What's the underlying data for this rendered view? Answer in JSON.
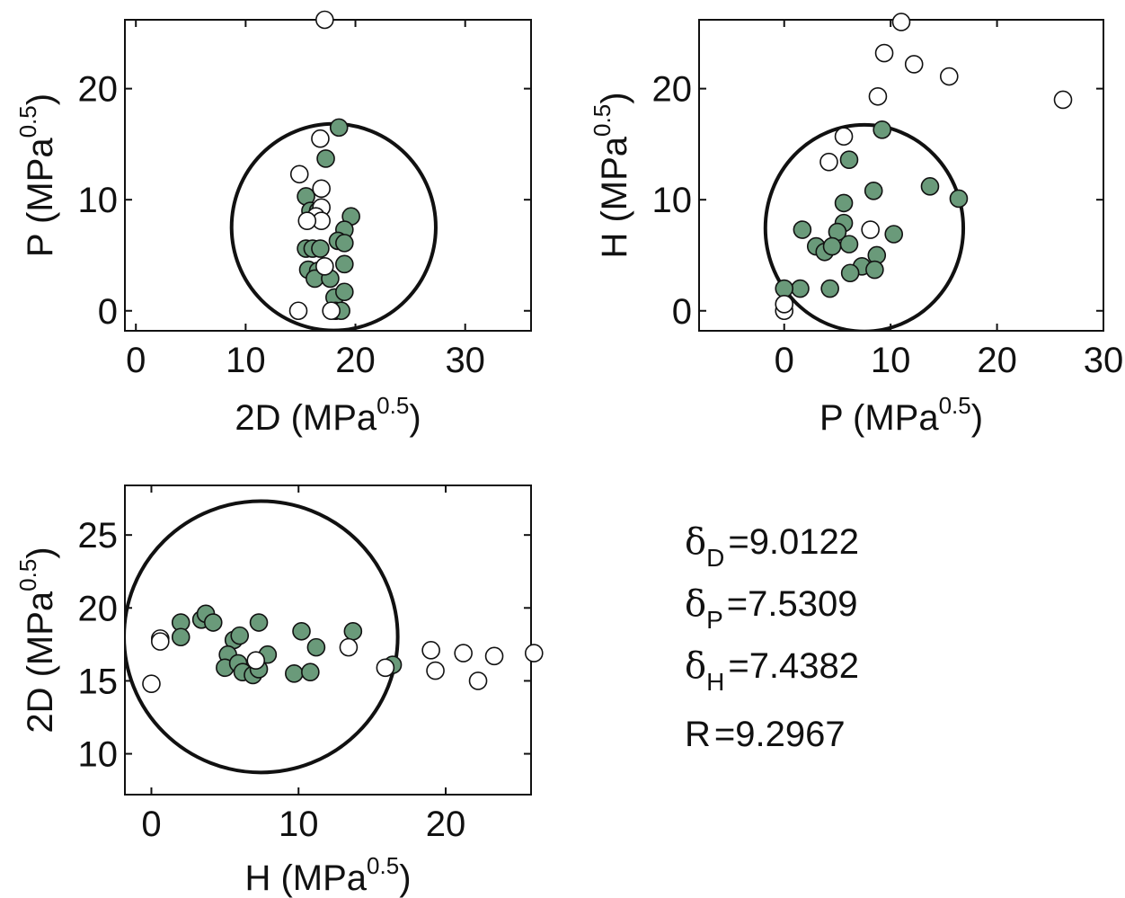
{
  "colors": {
    "inside_fill": "#6a9a7a",
    "outside_fill": "#ffffff",
    "stroke": "#111111",
    "sphere": "#111111"
  },
  "chart_data": [
    {
      "type": "scatter",
      "xlabel": {
        "text": "2D (MPa",
        "sup": "0.5",
        "close": ")"
      },
      "ylabel": {
        "text": "P (MPa",
        "sup": "0.5",
        "close": ")"
      },
      "xlim": [
        -1,
        36
      ],
      "ylim": [
        -1.8,
        26.2
      ],
      "xticks": [
        "0",
        "10",
        "20",
        "30"
      ],
      "yticks": [
        "0",
        "10",
        "20"
      ],
      "circle": {
        "cx": 18.02,
        "cy": 7.53,
        "r": 9.3
      },
      "series": [
        {
          "kind": "inside",
          "points": [
            [
              18.5,
              16.5
            ],
            [
              17.3,
              13.7
            ],
            [
              15.5,
              10.3
            ],
            [
              15.9,
              9.0
            ],
            [
              16.6,
              9.0
            ],
            [
              19.6,
              8.5
            ],
            [
              19.0,
              7.3
            ],
            [
              18.4,
              6.3
            ],
            [
              19.0,
              6.1
            ],
            [
              15.5,
              5.6
            ],
            [
              16.1,
              5.6
            ],
            [
              16.8,
              5.6
            ],
            [
              15.7,
              3.7
            ],
            [
              16.6,
              3.6
            ],
            [
              19.0,
              4.2
            ],
            [
              16.3,
              2.9
            ],
            [
              17.7,
              2.9
            ],
            [
              18.1,
              1.2
            ],
            [
              19.0,
              1.7
            ],
            [
              18.2,
              0.0
            ],
            [
              18.7,
              0.0
            ]
          ]
        },
        {
          "kind": "outside",
          "points": [
            [
              17.2,
              26.2
            ],
            [
              16.8,
              15.5
            ],
            [
              14.9,
              12.3
            ],
            [
              16.9,
              11.0
            ],
            [
              16.9,
              9.3
            ],
            [
              16.4,
              8.5
            ],
            [
              16.9,
              8.1
            ],
            [
              15.6,
              8.1
            ],
            [
              17.2,
              4.0
            ],
            [
              14.8,
              0.0
            ],
            [
              17.8,
              0.0
            ]
          ]
        }
      ]
    },
    {
      "type": "scatter",
      "xlabel": {
        "text": "P (MPa",
        "sup": "0.5",
        "close": ")"
      },
      "ylabel": {
        "text": "H (MPa",
        "sup": "0.5",
        "close": ")"
      },
      "xlim": [
        -8,
        30
      ],
      "ylim": [
        -1.8,
        26.2
      ],
      "xticks": [
        "0",
        "10",
        "20",
        "30"
      ],
      "yticks": [
        "0",
        "10",
        "20"
      ],
      "circle": {
        "cx": 7.53,
        "cy": 7.44,
        "r": 9.3
      },
      "series": [
        {
          "kind": "inside",
          "points": [
            [
              9.2,
              16.3
            ],
            [
              13.7,
              11.2
            ],
            [
              16.4,
              10.1
            ],
            [
              8.4,
              10.8
            ],
            [
              5.6,
              9.7
            ],
            [
              1.7,
              7.3
            ],
            [
              5.6,
              7.9
            ],
            [
              5.0,
              7.1
            ],
            [
              10.3,
              6.9
            ],
            [
              6.1,
              6.0
            ],
            [
              3.0,
              5.8
            ],
            [
              3.8,
              5.3
            ],
            [
              4.5,
              5.8
            ],
            [
              8.7,
              5.0
            ],
            [
              6.1,
              13.6
            ],
            [
              7.3,
              4.0
            ],
            [
              8.5,
              3.7
            ],
            [
              6.2,
              3.4
            ],
            [
              1.5,
              2.0
            ],
            [
              4.3,
              2.0
            ],
            [
              0.0,
              2.0
            ]
          ]
        },
        {
          "kind": "outside",
          "points": [
            [
              11.0,
              26.0
            ],
            [
              9.4,
              23.2
            ],
            [
              12.2,
              22.2
            ],
            [
              15.5,
              21.1
            ],
            [
              26.2,
              19.0
            ],
            [
              8.8,
              19.3
            ],
            [
              5.6,
              15.7
            ],
            [
              4.2,
              13.4
            ],
            [
              8.1,
              7.3
            ],
            [
              0.0,
              0.0
            ],
            [
              0.0,
              0.6
            ]
          ]
        }
      ]
    },
    {
      "type": "scatter",
      "xlabel": {
        "text": "H (MPa",
        "sup": "0.5",
        "close": ")"
      },
      "ylabel": {
        "text": "2D (MPa",
        "sup": "0.5",
        "close": ")"
      },
      "xlim": [
        -1.8,
        25.8
      ],
      "ylim": [
        7.2,
        28.4
      ],
      "xticks": [
        "0",
        "10",
        "20"
      ],
      "yticks": [
        "10",
        "15",
        "20",
        "25"
      ],
      "circle": {
        "cx": 7.44,
        "cy": 18.02,
        "r": 9.3
      },
      "series": [
        {
          "kind": "inside",
          "points": [
            [
              2.0,
              19.0
            ],
            [
              2.0,
              18.0
            ],
            [
              3.4,
              19.2
            ],
            [
              3.7,
              19.6
            ],
            [
              4.2,
              19.0
            ],
            [
              5.6,
              17.8
            ],
            [
              6.0,
              18.1
            ],
            [
              5.2,
              16.8
            ],
            [
              5.0,
              15.9
            ],
            [
              5.9,
              16.2
            ],
            [
              6.2,
              15.6
            ],
            [
              6.9,
              15.4
            ],
            [
              7.3,
              15.8
            ],
            [
              7.3,
              19.0
            ],
            [
              7.9,
              16.8
            ],
            [
              9.7,
              15.5
            ],
            [
              10.2,
              18.4
            ],
            [
              10.8,
              15.6
            ],
            [
              11.2,
              17.3
            ],
            [
              13.7,
              18.4
            ],
            [
              16.4,
              16.1
            ]
          ]
        },
        {
          "kind": "outside",
          "points": [
            [
              0.0,
              14.8
            ],
            [
              0.6,
              17.9
            ],
            [
              0.6,
              17.7
            ],
            [
              7.1,
              16.4
            ],
            [
              13.4,
              17.3
            ],
            [
              15.9,
              15.9
            ],
            [
              19.0,
              17.1
            ],
            [
              19.3,
              15.7
            ],
            [
              21.2,
              16.9
            ],
            [
              22.2,
              15.0
            ],
            [
              23.3,
              16.7
            ],
            [
              26.0,
              16.9
            ]
          ]
        }
      ]
    }
  ],
  "parameters": [
    {
      "symbol": "δ",
      "sub": "D",
      "value": "=9.0122"
    },
    {
      "symbol": "δ",
      "sub": "P",
      "value": "=7.5309"
    },
    {
      "symbol": "δ",
      "sub": "H",
      "value": "=7.4382"
    },
    {
      "symbol": "R",
      "sub": "",
      "value": "=9.2967"
    }
  ]
}
